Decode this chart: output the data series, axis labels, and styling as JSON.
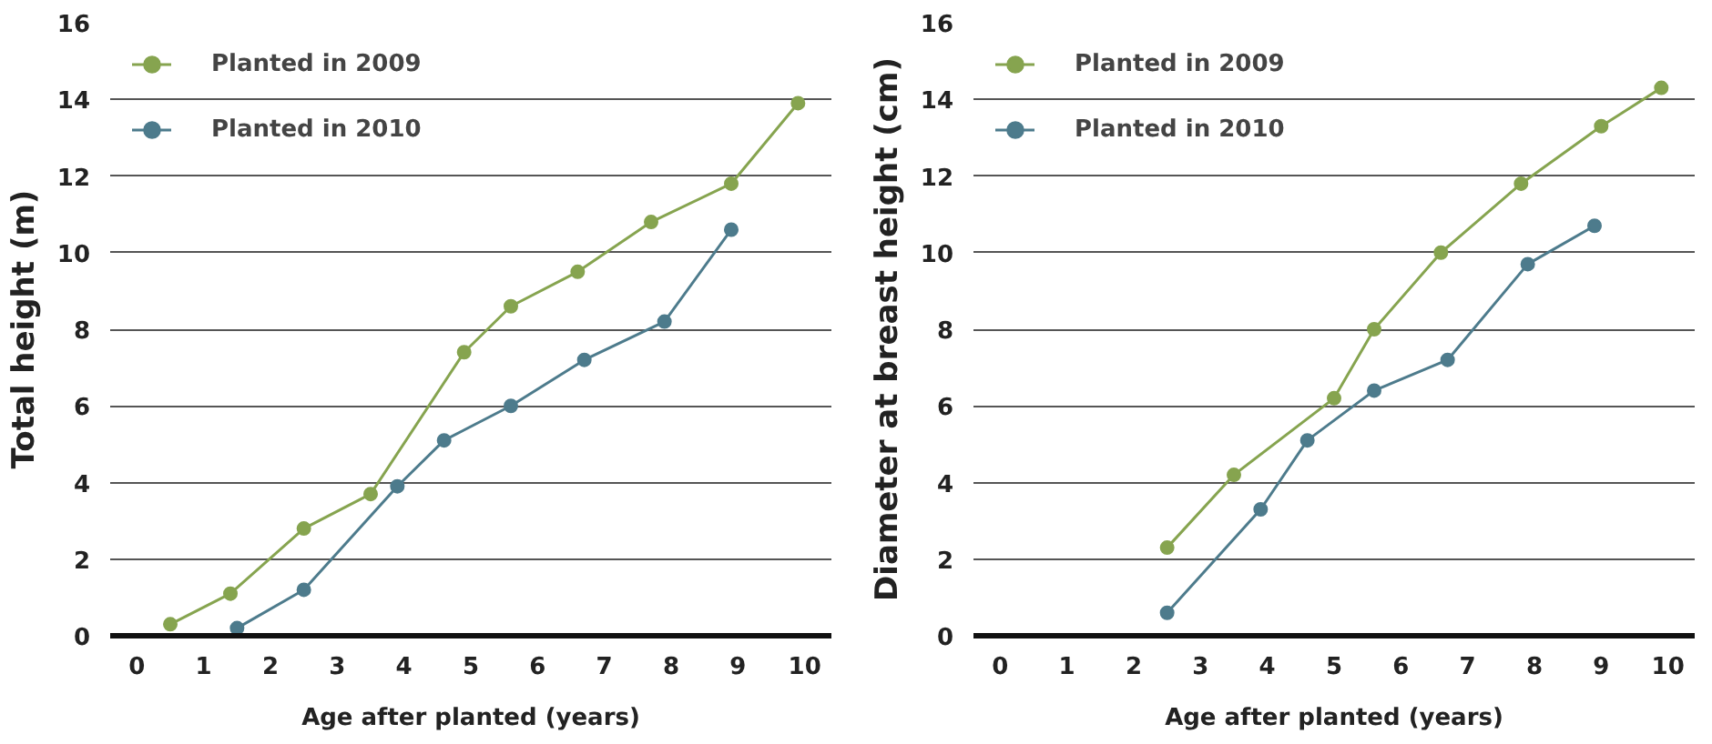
{
  "chart_data": [
    {
      "type": "line",
      "xlabel": "Age after planted (years)",
      "ylabel": "Total height (m)",
      "xlim": [
        -0.4,
        10.4
      ],
      "ylim": [
        0,
        16
      ],
      "xticks": [
        0,
        1,
        2,
        3,
        4,
        5,
        6,
        7,
        8,
        9,
        10
      ],
      "yticks": [
        0,
        2,
        4,
        6,
        8,
        10,
        12,
        14,
        16
      ],
      "grid": "y",
      "legend": "top left",
      "marker": "circle",
      "line_style": "solid",
      "series": [
        {
          "name": "Planted in 2009",
          "color": "#86a44f",
          "x": [
            0.5,
            1.4,
            2.5,
            3.5,
            4.9,
            5.6,
            6.6,
            7.7,
            8.9,
            9.9
          ],
          "values": [
            0.3,
            1.1,
            2.8,
            3.7,
            7.4,
            8.6,
            9.5,
            10.8,
            11.8,
            13.9
          ]
        },
        {
          "name": "Planted in 2010",
          "color": "#4d7b8c",
          "x": [
            1.5,
            2.5,
            3.9,
            4.6,
            5.6,
            6.7,
            7.9,
            8.9
          ],
          "values": [
            0.2,
            1.2,
            3.9,
            5.1,
            6.0,
            7.2,
            8.2,
            10.6
          ]
        }
      ]
    },
    {
      "type": "line",
      "xlabel": "Age after planted (years)",
      "ylabel": "Diameter at breast height (cm)",
      "xlim": [
        -0.4,
        10.4
      ],
      "ylim": [
        0,
        16
      ],
      "xticks": [
        0,
        1,
        2,
        3,
        4,
        5,
        6,
        7,
        8,
        9,
        10
      ],
      "yticks": [
        0,
        2,
        4,
        6,
        8,
        10,
        12,
        14,
        16
      ],
      "grid": "y",
      "legend": "top left",
      "marker": "circle",
      "line_style": "solid",
      "series": [
        {
          "name": "Planted in 2009",
          "color": "#86a44f",
          "x": [
            2.5,
            3.5,
            5.0,
            5.6,
            6.6,
            7.8,
            9.0,
            9.9
          ],
          "values": [
            2.3,
            4.2,
            6.2,
            8.0,
            10.0,
            11.8,
            13.3,
            14.3
          ]
        },
        {
          "name": "Planted in 2010",
          "color": "#4d7b8c",
          "x": [
            2.5,
            3.9,
            4.6,
            5.6,
            6.7,
            7.9,
            8.9
          ],
          "values": [
            0.6,
            3.3,
            5.1,
            6.4,
            7.2,
            9.7,
            10.7
          ]
        }
      ]
    }
  ]
}
